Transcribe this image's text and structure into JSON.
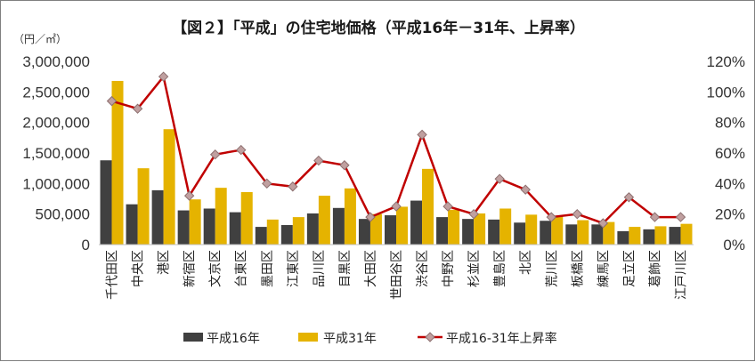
{
  "chart_data": {
    "type": "bar",
    "title": "【図２】「平成」の住宅地価格（平成16年－31年、上昇率）",
    "unit_label": "（円／㎡）",
    "categories": [
      "千代田区",
      "中央区",
      "港区",
      "新宿区",
      "文京区",
      "台東区",
      "墨田区",
      "江東区",
      "品川区",
      "目黒区",
      "大田区",
      "世田谷区",
      "渋谷区",
      "中野区",
      "杉並区",
      "豊島区",
      "北区",
      "荒川区",
      "板橋区",
      "練馬区",
      "足立区",
      "葛飾区",
      "江戸川区"
    ],
    "series": [
      {
        "name": "平成16年",
        "type": "bar",
        "axis": "left",
        "color": "#404040",
        "values": [
          1380000,
          660000,
          890000,
          560000,
          590000,
          530000,
          290000,
          320000,
          510000,
          600000,
          420000,
          480000,
          720000,
          450000,
          420000,
          410000,
          360000,
          390000,
          330000,
          330000,
          220000,
          250000,
          290000
        ]
      },
      {
        "name": "平成31年",
        "type": "bar",
        "axis": "left",
        "color": "#e5b300",
        "values": [
          2680000,
          1250000,
          1890000,
          740000,
          930000,
          860000,
          410000,
          450000,
          800000,
          920000,
          500000,
          620000,
          1240000,
          570000,
          510000,
          590000,
          490000,
          460000,
          400000,
          370000,
          290000,
          300000,
          340000
        ]
      },
      {
        "name": "平成16-31年上昇率",
        "type": "line",
        "axis": "right",
        "color": "#c00000",
        "marker_color": "#c0a0a0",
        "values": [
          94,
          89,
          110,
          32,
          59,
          62,
          40,
          38,
          55,
          52,
          18,
          25,
          72,
          25,
          20,
          43,
          36,
          18,
          20,
          14,
          31,
          18,
          18
        ]
      }
    ],
    "y_left": {
      "min": 0,
      "max": 3000000,
      "ticks": [
        "0",
        "500,000",
        "1,000,000",
        "1,500,000",
        "2,000,000",
        "2,500,000",
        "3,000,000"
      ]
    },
    "y_right": {
      "min": 0,
      "max": 120,
      "ticks": [
        "0%",
        "20%",
        "40%",
        "60%",
        "80%",
        "100%",
        "120%"
      ]
    },
    "grid": false,
    "legend_position": "bottom"
  }
}
